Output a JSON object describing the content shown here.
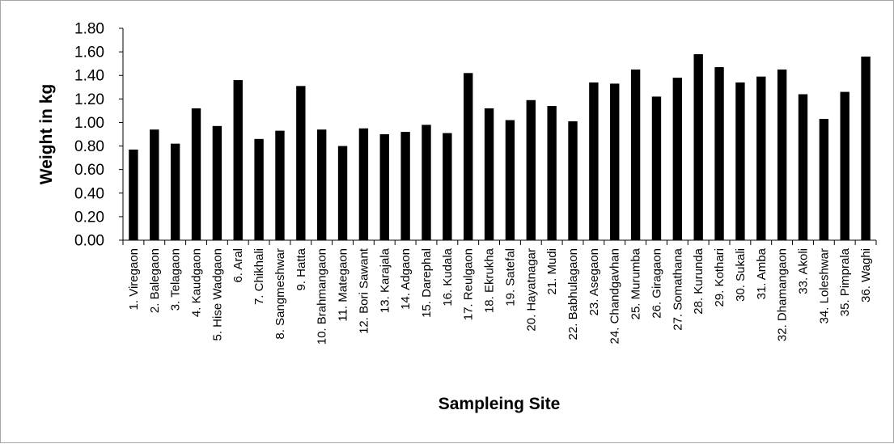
{
  "chart_data": {
    "type": "bar",
    "title": "",
    "xlabel": "Sampleing Site",
    "ylabel": "Weight in kg",
    "ylim": [
      0,
      1.8
    ],
    "yticks": [
      "0.00",
      "0.20",
      "0.40",
      "0.60",
      "0.80",
      "1.00",
      "1.20",
      "1.40",
      "1.60",
      "1.80"
    ],
    "grid": false,
    "legend": "none",
    "bar_color": "#000000",
    "categories": [
      "1. Viregaon",
      "2. Balegaon",
      "3. Telagaon",
      "4. Kaudgaon",
      "5. Hise Wadgaon",
      "6. Aral",
      "7. Chikhali",
      "8. Sangmeshwar",
      "9. Hatta",
      "10. Brahmangaon",
      "11. Mategaon",
      "12. Bori Sawant",
      "13. Karajala",
      "14. Adgaon",
      "15. Darephal",
      "16. Kudala",
      "17. Reulgaon",
      "18. Ekrukha",
      "19. Satefal",
      "20. Hayatnagar",
      "21. Mudi",
      "22. Babhulagaon",
      "23. Asegaon",
      "24. Chandgavhan",
      "25. Murumba",
      "26. Giragaon",
      "27. Somathana",
      "28. Kurunda",
      "29. Kothari",
      "30. Sukali",
      "31. Amba",
      "32. Dhamangaon",
      "33. Akoli",
      "34. Loleshwar",
      "35. Pimprala",
      "36. Waghi"
    ],
    "values": [
      0.77,
      0.94,
      0.82,
      1.12,
      0.97,
      1.36,
      0.86,
      0.93,
      1.31,
      0.94,
      0.8,
      0.95,
      0.9,
      0.92,
      0.98,
      0.91,
      1.42,
      1.12,
      1.02,
      1.19,
      1.14,
      1.01,
      1.34,
      1.33,
      1.45,
      1.22,
      1.38,
      1.58,
      1.47,
      1.34,
      1.39,
      1.45,
      1.24,
      1.03,
      1.26,
      1.56
    ]
  }
}
